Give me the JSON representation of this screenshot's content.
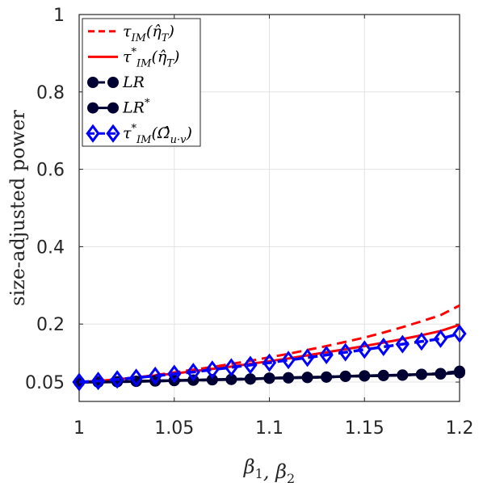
{
  "chart_data": {
    "type": "line",
    "xlabel": "β1, β2",
    "ylabel": "size-adjusted power",
    "xlim": [
      1,
      1.2
    ],
    "ylim": [
      0,
      1
    ],
    "xticks": [
      1,
      1.05,
      1.1,
      1.15,
      1.2
    ],
    "xtick_labels": [
      "1",
      "1.05",
      "1.1",
      "1.15",
      "1.2"
    ],
    "yticks": [
      0.05,
      0.2,
      0.4,
      0.6,
      0.8,
      1
    ],
    "ytick_labels": [
      "0.05",
      "0.2",
      "0.4",
      "0.6",
      "0.8",
      "1"
    ],
    "grid": true,
    "legend_position": "top-left",
    "x": [
      1,
      1.01,
      1.02,
      1.03,
      1.04,
      1.05,
      1.06,
      1.07,
      1.08,
      1.09,
      1.1,
      1.11,
      1.12,
      1.13,
      1.14,
      1.15,
      1.16,
      1.17,
      1.18,
      1.19,
      1.2
    ],
    "series": [
      {
        "name": "τIM(η̂T)",
        "color": "#ff0000",
        "line": "dashed",
        "marker": "none",
        "values": [
          0.05,
          0.053,
          0.057,
          0.062,
          0.068,
          0.075,
          0.082,
          0.089,
          0.097,
          0.105,
          0.114,
          0.123,
          0.133,
          0.143,
          0.154,
          0.165,
          0.178,
          0.192,
          0.207,
          0.223,
          0.248
        ]
      },
      {
        "name": "τ*IM(η̂T)",
        "color": "#ff0000",
        "line": "solid",
        "marker": "none",
        "values": [
          0.05,
          0.053,
          0.057,
          0.062,
          0.067,
          0.072,
          0.078,
          0.084,
          0.09,
          0.097,
          0.104,
          0.111,
          0.119,
          0.127,
          0.135,
          0.143,
          0.152,
          0.161,
          0.171,
          0.182,
          0.198
        ]
      },
      {
        "name": "LR",
        "color": "#000033",
        "line": "dashed",
        "marker": "circle",
        "values": [
          0.05,
          0.05,
          0.051,
          0.052,
          0.053,
          0.054,
          0.055,
          0.056,
          0.057,
          0.058,
          0.06,
          0.061,
          0.062,
          0.063,
          0.065,
          0.066,
          0.067,
          0.068,
          0.07,
          0.072,
          0.078
        ]
      },
      {
        "name": "LR*",
        "color": "#000033",
        "line": "solid",
        "marker": "circle",
        "values": [
          0.05,
          0.05,
          0.051,
          0.052,
          0.053,
          0.054,
          0.055,
          0.056,
          0.057,
          0.058,
          0.06,
          0.061,
          0.062,
          0.063,
          0.065,
          0.066,
          0.067,
          0.068,
          0.07,
          0.071,
          0.074
        ]
      },
      {
        "name": "τ*IM(Ω̂u·v)",
        "color": "#0000ff",
        "line": "dashed",
        "marker": "diamond",
        "values": [
          0.05,
          0.053,
          0.057,
          0.061,
          0.066,
          0.071,
          0.076,
          0.082,
          0.088,
          0.094,
          0.1,
          0.107,
          0.113,
          0.12,
          0.127,
          0.134,
          0.141,
          0.148,
          0.155,
          0.162,
          0.175
        ]
      }
    ]
  }
}
